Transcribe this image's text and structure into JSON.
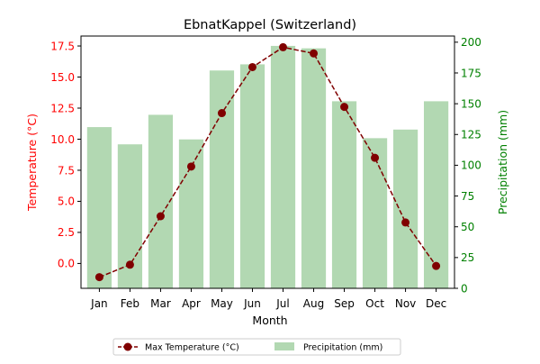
{
  "chart_data": {
    "type": "bar+line",
    "title": "EbnatKappel (Switzerland)",
    "xlabel": "Month",
    "categories": [
      "Jan",
      "Feb",
      "Mar",
      "Apr",
      "May",
      "Jun",
      "Jul",
      "Aug",
      "Sep",
      "Oct",
      "Nov",
      "Dec"
    ],
    "left_axis": {
      "label": "Temperature (°C)",
      "color": "#ff0000",
      "ylim": [
        -2.0,
        18.3
      ],
      "ticks": [
        0.0,
        2.5,
        5.0,
        7.5,
        10.0,
        12.5,
        15.0,
        17.5
      ],
      "tick_labels": [
        "0.0",
        "2.5",
        "5.0",
        "7.5",
        "10.0",
        "12.5",
        "15.0",
        "17.5"
      ]
    },
    "right_axis": {
      "label": "Precipitation (mm)",
      "color": "#008000",
      "ylim": [
        0,
        205
      ],
      "ticks": [
        0,
        25,
        50,
        75,
        100,
        125,
        150,
        175,
        200
      ],
      "tick_labels": [
        "0",
        "25",
        "50",
        "75",
        "100",
        "125",
        "150",
        "175",
        "200"
      ]
    },
    "series": [
      {
        "name": "Max Temperature (°C)",
        "kind": "line",
        "axis": "left",
        "color": "#800000",
        "marker": "circle",
        "linestyle": "dashed",
        "values": [
          -1.1,
          -0.1,
          3.8,
          7.8,
          12.1,
          15.8,
          17.4,
          16.9,
          12.6,
          8.5,
          3.3,
          -0.2
        ]
      },
      {
        "name": "Precipitation (mm)",
        "kind": "bar",
        "axis": "right",
        "color": "#b2d8b2",
        "values": [
          131,
          117,
          141,
          121,
          177,
          182,
          197,
          195,
          152,
          122,
          129,
          152
        ]
      }
    ],
    "legend": {
      "position": "bottom-center",
      "entries": [
        "Max Temperature (°C)",
        "Precipitation (mm)"
      ]
    },
    "grid": false
  }
}
